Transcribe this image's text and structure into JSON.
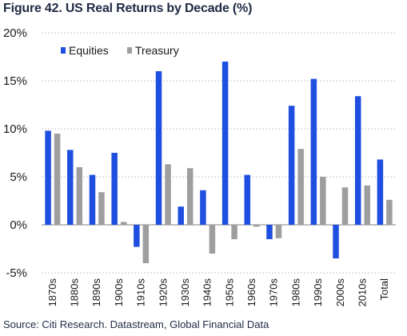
{
  "title": "Figure 42. US Real Returns by Decade (%)",
  "source": "Source: Citi Research. Datastream, Global Financial Data",
  "chart_data": {
    "type": "bar",
    "categories": [
      "1870s",
      "1880s",
      "1890s",
      "1900s",
      "1910s",
      "1920s",
      "1930s",
      "1940s",
      "1950s",
      "1960s",
      "1970s",
      "1980s",
      "1990s",
      "2000s",
      "2010s",
      "Total"
    ],
    "series": [
      {
        "name": "Equities",
        "color": "#1f4fe0",
        "values": [
          9.8,
          7.8,
          5.2,
          7.5,
          -2.3,
          16.0,
          1.9,
          3.6,
          17.0,
          5.2,
          -1.5,
          12.4,
          15.2,
          -3.5,
          13.4,
          6.8
        ]
      },
      {
        "name": "Treasury",
        "color": "#9e9e9e",
        "values": [
          9.5,
          6.0,
          3.4,
          0.3,
          -4.0,
          6.3,
          5.9,
          -3.0,
          -1.5,
          -0.2,
          -1.4,
          7.9,
          5.0,
          3.9,
          4.1,
          2.6
        ]
      }
    ],
    "yticks": [
      "20%",
      "15%",
      "10%",
      "5%",
      "0%",
      "-5%"
    ],
    "ytick_values": [
      20,
      15,
      10,
      5,
      0,
      -5
    ],
    "ylim": [
      -5,
      20
    ],
    "grid": true,
    "legend_position": "top-left"
  }
}
